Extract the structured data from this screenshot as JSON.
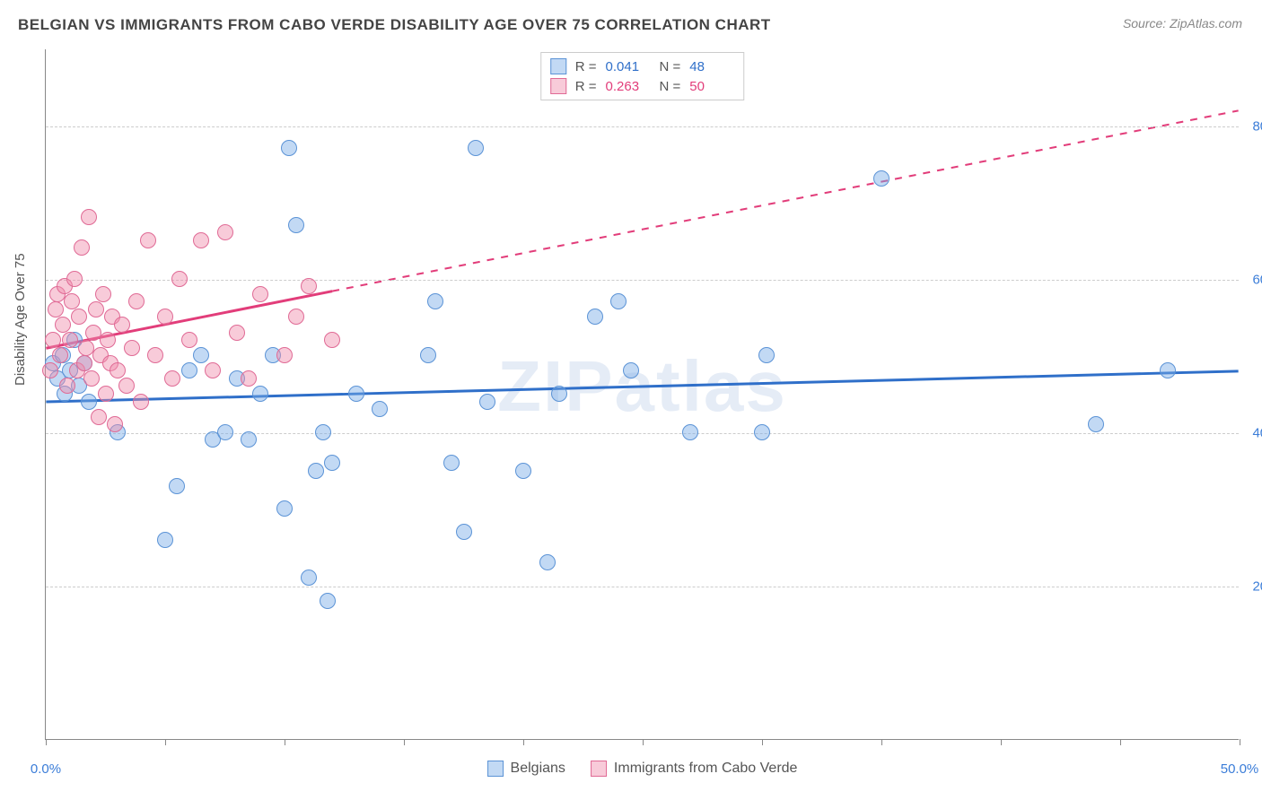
{
  "title": "BELGIAN VS IMMIGRANTS FROM CABO VERDE DISABILITY AGE OVER 75 CORRELATION CHART",
  "source": "Source: ZipAtlas.com",
  "watermark": "ZIPatlas",
  "ylabel": "Disability Age Over 75",
  "chart": {
    "type": "scatter",
    "xlim": [
      0,
      50
    ],
    "ylim": [
      0,
      90
    ],
    "x_ticks": [
      0,
      5,
      10,
      15,
      20,
      25,
      30,
      35,
      40,
      45,
      50
    ],
    "x_tick_labels": {
      "0": "0.0%",
      "50": "50.0%"
    },
    "y_gridlines": [
      20,
      40,
      60,
      80
    ],
    "y_tick_labels": {
      "20": "20.0%",
      "40": "40.0%",
      "60": "60.0%",
      "80": "80.0%"
    },
    "x_label_color": "#3b7dd8",
    "y_label_color": "#3b7dd8",
    "grid_color": "#cccccc",
    "background": "#ffffff",
    "series": [
      {
        "name": "Belgians",
        "fill": "rgba(120,170,230,0.45)",
        "stroke": "#5b93d6",
        "line_color": "#2f6fc9",
        "R": "0.041",
        "N": "48",
        "trend": {
          "x1": 0,
          "y1": 44,
          "x2": 50,
          "y2": 48,
          "solid_until": 50
        },
        "points": [
          [
            0.3,
            49
          ],
          [
            0.5,
            47
          ],
          [
            0.7,
            50
          ],
          [
            0.8,
            45
          ],
          [
            1.0,
            48
          ],
          [
            1.2,
            52
          ],
          [
            1.4,
            46
          ],
          [
            1.6,
            49
          ],
          [
            1.8,
            44
          ],
          [
            3.0,
            40
          ],
          [
            5.0,
            26
          ],
          [
            5.5,
            33
          ],
          [
            6.0,
            48
          ],
          [
            6.5,
            50
          ],
          [
            7.0,
            39
          ],
          [
            7.5,
            40
          ],
          [
            8.0,
            47
          ],
          [
            8.5,
            39
          ],
          [
            9.0,
            45
          ],
          [
            9.5,
            50
          ],
          [
            10.0,
            30
          ],
          [
            10.2,
            77
          ],
          [
            10.5,
            67
          ],
          [
            11.0,
            21
          ],
          [
            11.3,
            35
          ],
          [
            11.6,
            40
          ],
          [
            11.8,
            18
          ],
          [
            12.0,
            36
          ],
          [
            13.0,
            45
          ],
          [
            14.0,
            43
          ],
          [
            16.0,
            50
          ],
          [
            16.3,
            57
          ],
          [
            17.0,
            36
          ],
          [
            17.5,
            27
          ],
          [
            18.0,
            77
          ],
          [
            18.5,
            44
          ],
          [
            20.0,
            35
          ],
          [
            21.0,
            23
          ],
          [
            21.5,
            45
          ],
          [
            23.0,
            55
          ],
          [
            24.0,
            57
          ],
          [
            24.5,
            48
          ],
          [
            27.0,
            40
          ],
          [
            30.0,
            40
          ],
          [
            30.2,
            50
          ],
          [
            35.0,
            73
          ],
          [
            44.0,
            41
          ],
          [
            47.0,
            48
          ]
        ]
      },
      {
        "name": "Immigrants from Cabo Verde",
        "fill": "rgba(240,140,170,0.45)",
        "stroke": "#e06a95",
        "line_color": "#e23d7a",
        "R": "0.263",
        "N": "50",
        "trend": {
          "x1": 0,
          "y1": 51,
          "x2": 50,
          "y2": 82,
          "solid_until": 12
        },
        "points": [
          [
            0.2,
            48
          ],
          [
            0.3,
            52
          ],
          [
            0.4,
            56
          ],
          [
            0.5,
            58
          ],
          [
            0.6,
            50
          ],
          [
            0.7,
            54
          ],
          [
            0.8,
            59
          ],
          [
            0.9,
            46
          ],
          [
            1.0,
            52
          ],
          [
            1.1,
            57
          ],
          [
            1.2,
            60
          ],
          [
            1.3,
            48
          ],
          [
            1.4,
            55
          ],
          [
            1.5,
            64
          ],
          [
            1.6,
            49
          ],
          [
            1.7,
            51
          ],
          [
            1.8,
            68
          ],
          [
            1.9,
            47
          ],
          [
            2.0,
            53
          ],
          [
            2.1,
            56
          ],
          [
            2.2,
            42
          ],
          [
            2.3,
            50
          ],
          [
            2.4,
            58
          ],
          [
            2.5,
            45
          ],
          [
            2.6,
            52
          ],
          [
            2.7,
            49
          ],
          [
            2.8,
            55
          ],
          [
            2.9,
            41
          ],
          [
            3.0,
            48
          ],
          [
            3.2,
            54
          ],
          [
            3.4,
            46
          ],
          [
            3.6,
            51
          ],
          [
            3.8,
            57
          ],
          [
            4.0,
            44
          ],
          [
            4.3,
            65
          ],
          [
            4.6,
            50
          ],
          [
            5.0,
            55
          ],
          [
            5.3,
            47
          ],
          [
            5.6,
            60
          ],
          [
            6.0,
            52
          ],
          [
            6.5,
            65
          ],
          [
            7.0,
            48
          ],
          [
            7.5,
            66
          ],
          [
            8.0,
            53
          ],
          [
            8.5,
            47
          ],
          [
            9.0,
            58
          ],
          [
            10.0,
            50
          ],
          [
            10.5,
            55
          ],
          [
            11.0,
            59
          ],
          [
            12.0,
            52
          ]
        ]
      }
    ]
  },
  "legend": {
    "s1_label": "Belgians",
    "s2_label": "Immigrants from Cabo Verde"
  },
  "stats_labels": {
    "r": "R =",
    "n": "N ="
  }
}
